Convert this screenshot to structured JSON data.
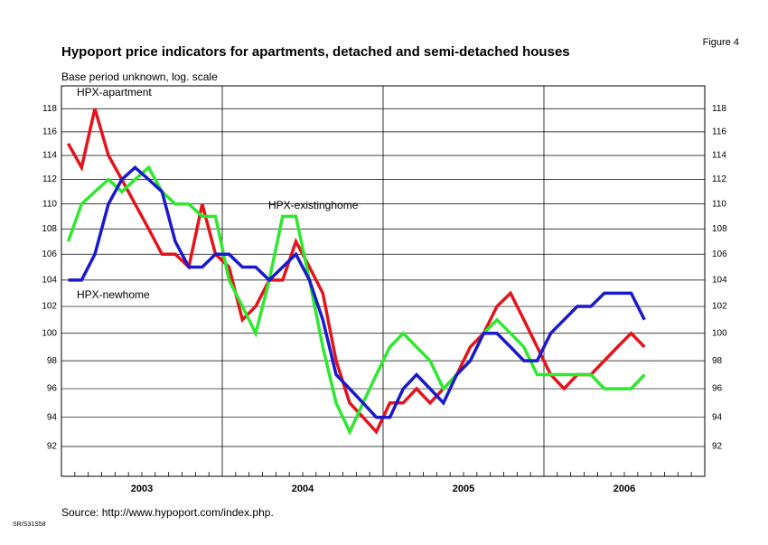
{
  "chart_data": {
    "type": "line",
    "title": "Hypoport price indicators for apartments, detached and semi-detached houses",
    "figure_label": "Figure 4",
    "subtitle": "Base period unknown, log. scale",
    "source": "Source: http://www.hypoport.com/index.php.",
    "code": "SR/S31S58",
    "log_y": true,
    "grid": true,
    "ylim": [
      90,
      120
    ],
    "yticks": [
      92,
      94,
      96,
      98,
      100,
      102,
      104,
      106,
      108,
      110,
      112,
      114,
      116,
      118
    ],
    "xlim": [
      2003,
      2007
    ],
    "xticks": [
      {
        "value": 2003.5,
        "label": "2003"
      },
      {
        "value": 2004.5,
        "label": "2004"
      },
      {
        "value": 2005.5,
        "label": "2005"
      },
      {
        "value": 2006.5,
        "label": "2006"
      }
    ],
    "x": [
      2003.042,
      2003.125,
      2003.208,
      2003.292,
      2003.375,
      2003.458,
      2003.542,
      2003.625,
      2003.708,
      2003.792,
      2003.875,
      2003.958,
      2004.042,
      2004.125,
      2004.208,
      2004.292,
      2004.375,
      2004.458,
      2004.542,
      2004.625,
      2004.708,
      2004.792,
      2004.875,
      2004.958,
      2005.042,
      2005.125,
      2005.208,
      2005.292,
      2005.375,
      2005.458,
      2005.542,
      2005.625,
      2005.708,
      2005.792,
      2005.875,
      2005.958,
      2006.042,
      2006.125,
      2006.208,
      2006.292,
      2006.375,
      2006.458,
      2006.542,
      2006.625
    ],
    "series": [
      {
        "name": "HPX-apartment",
        "color": "#e3141b",
        "values": [
          115,
          113,
          118,
          114,
          112,
          110,
          108,
          106,
          106,
          105,
          110,
          106,
          105,
          101,
          102,
          104,
          104,
          107,
          105,
          103,
          98,
          95,
          94,
          93,
          95,
          95,
          96,
          95,
          96,
          97,
          99,
          100,
          102,
          103,
          101,
          99,
          97,
          96,
          97,
          97,
          98,
          99,
          100,
          99
        ]
      },
      {
        "name": "HPX-existinghome",
        "color": "#2ee82e",
        "values": [
          107,
          110,
          111,
          112,
          111,
          112,
          113,
          111,
          110,
          110,
          109,
          109,
          104,
          102,
          100,
          104,
          109,
          109,
          104,
          99,
          95,
          93,
          95,
          97,
          99,
          100,
          99,
          98,
          96,
          97,
          98,
          100,
          101,
          100,
          99,
          97,
          97,
          97,
          97,
          97,
          96,
          96,
          96,
          97
        ]
      },
      {
        "name": "HPX-newhome",
        "color": "#1a1acc",
        "values": [
          104,
          104,
          106,
          110,
          112,
          113,
          112,
          111,
          107,
          105,
          105,
          106,
          106,
          105,
          105,
          104,
          105,
          106,
          104,
          101,
          97,
          96,
          95,
          94,
          94,
          96,
          97,
          96,
          95,
          97,
          98,
          100,
          100,
          99,
          98,
          98,
          100,
          101,
          102,
          102,
          103,
          103,
          103,
          101
        ]
      }
    ]
  }
}
